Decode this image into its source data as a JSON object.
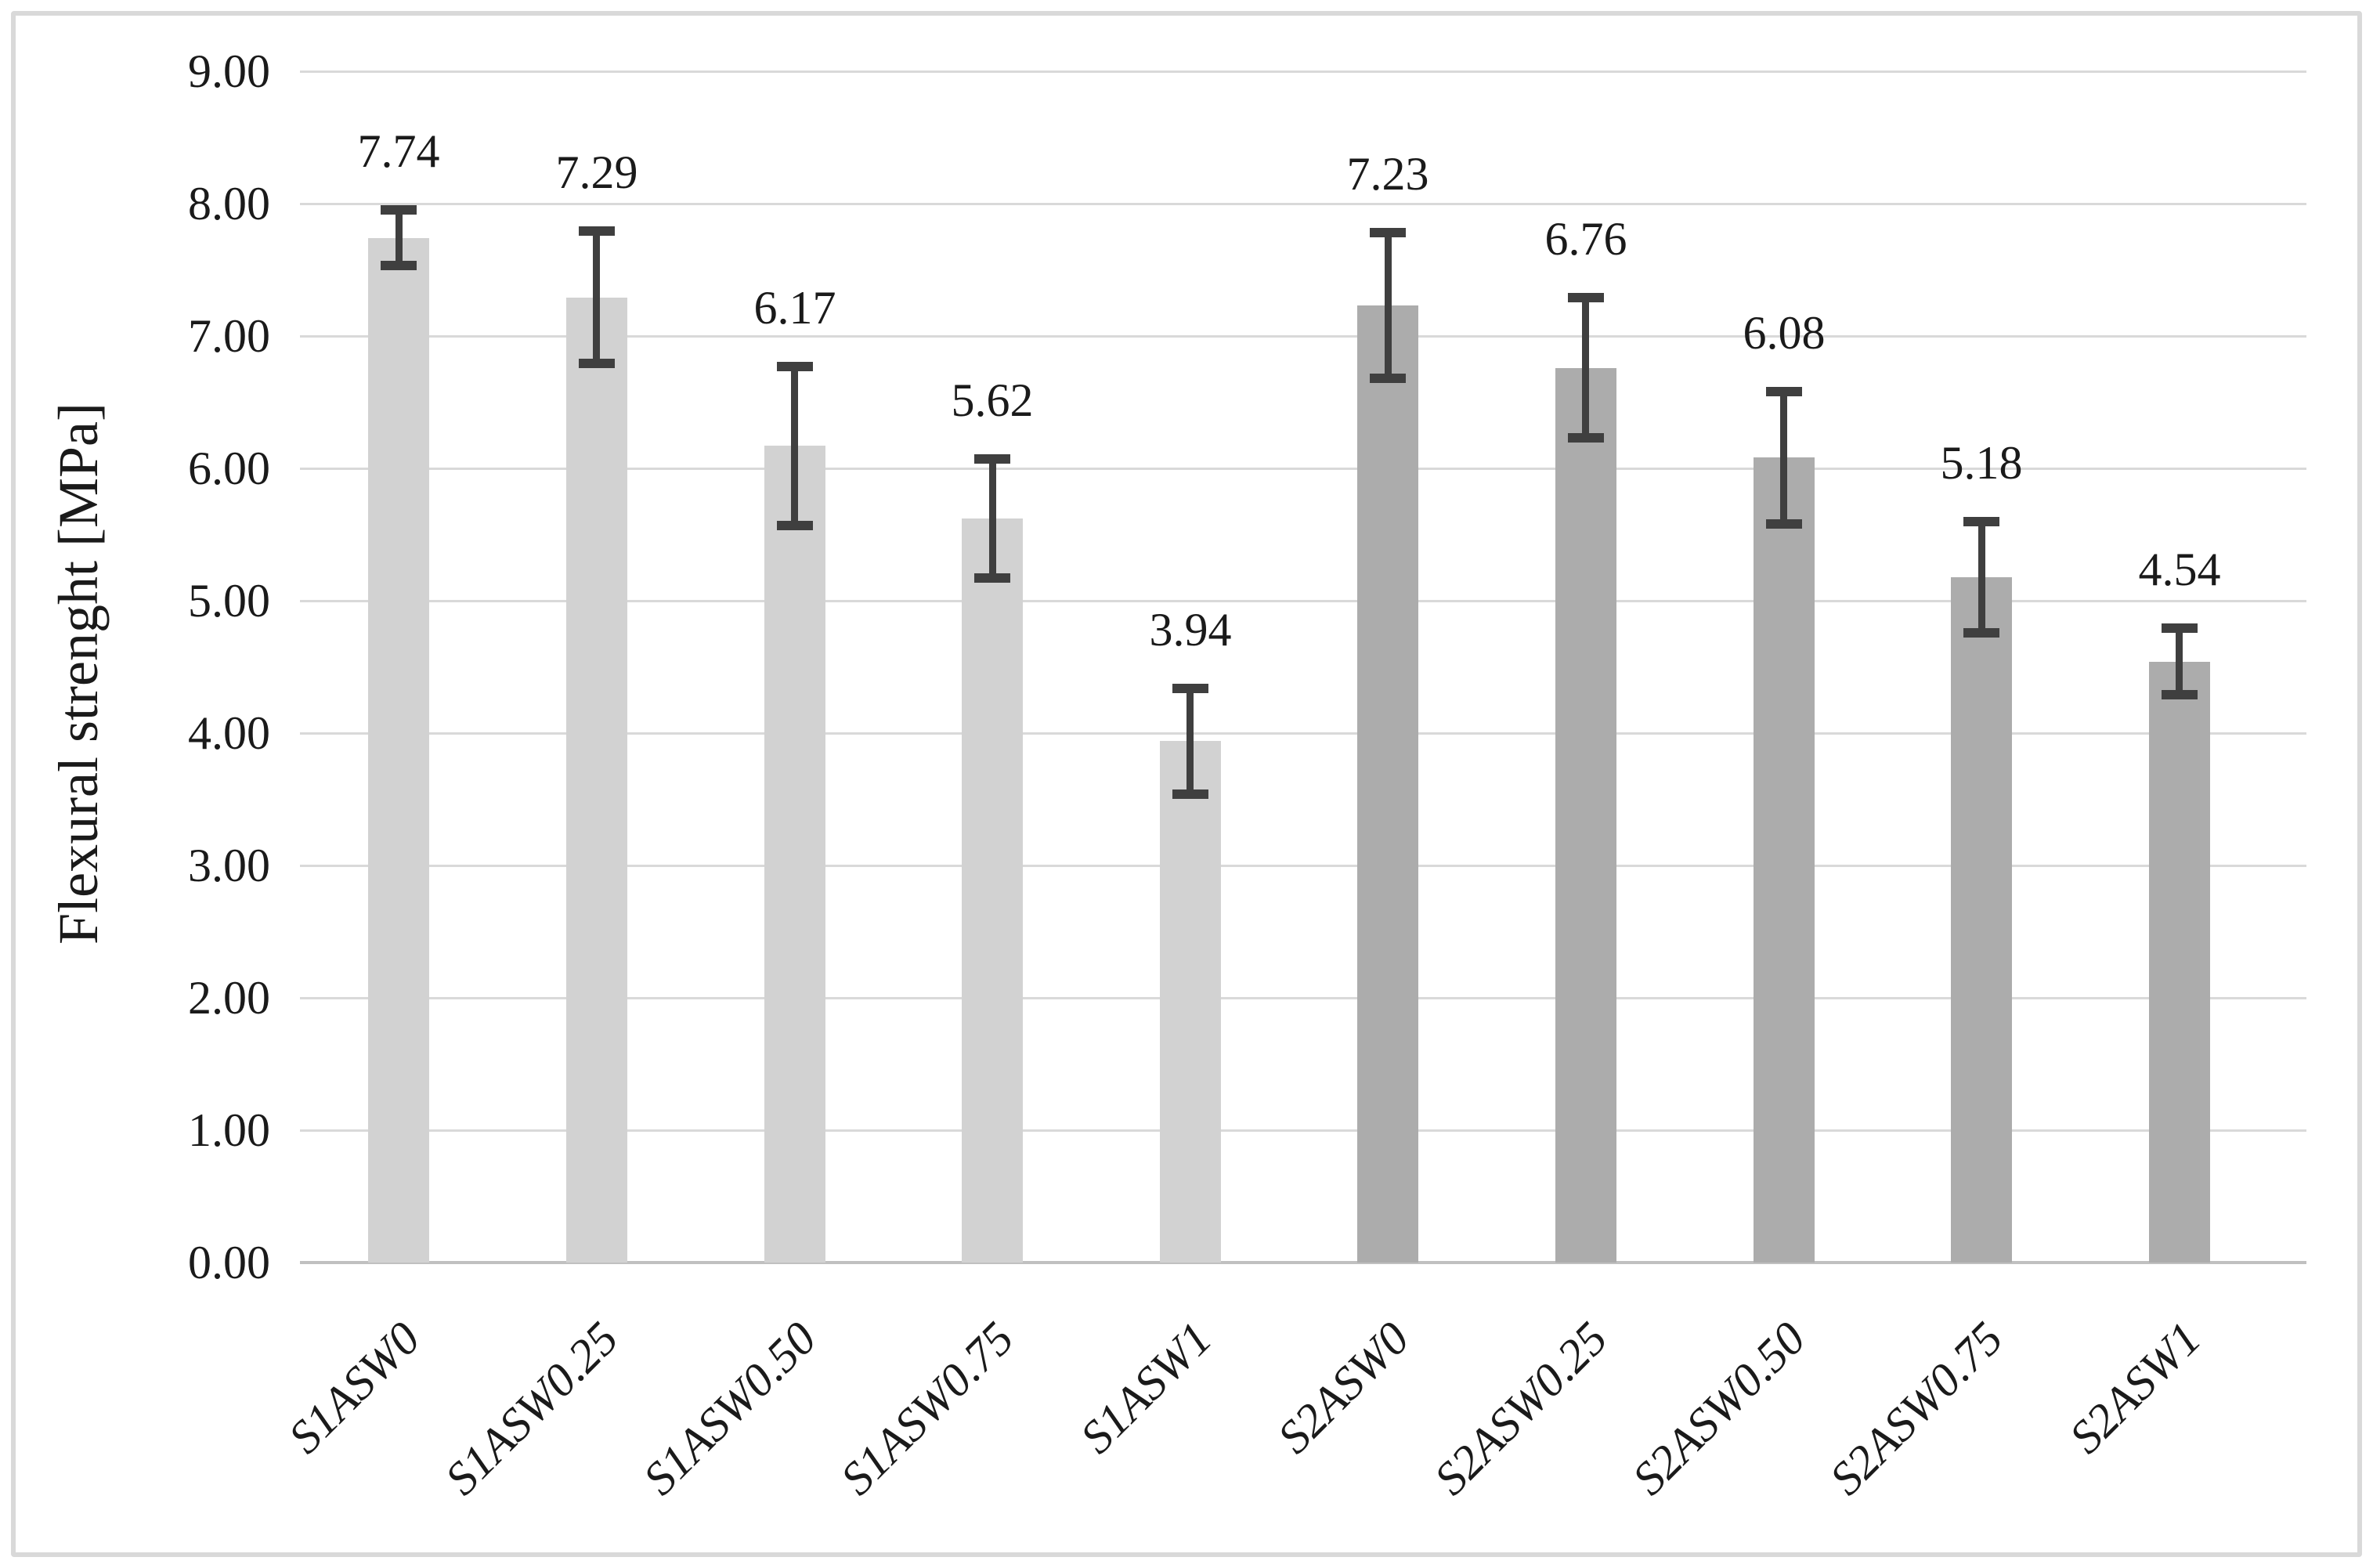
{
  "chart_data": {
    "type": "bar",
    "title": "",
    "ylabel": "Flexural strenght [MPa]",
    "xlabel": "",
    "ylim": [
      0,
      9
    ],
    "ytick_step": 1.0,
    "ytick_labels": [
      "0.00",
      "1.00",
      "2.00",
      "3.00",
      "4.00",
      "5.00",
      "6.00",
      "7.00",
      "8.00",
      "9.00"
    ],
    "categories": [
      "S1ASW0",
      "S1ASW0.25",
      "S1ASW0.50",
      "S1ASW0.75",
      "S1ASW1",
      "S2ASW0",
      "S2ASW0.25",
      "S2ASW0.50",
      "S2ASW0.75",
      "S2ASW1"
    ],
    "values": [
      7.74,
      7.29,
      6.17,
      5.62,
      3.94,
      7.23,
      6.76,
      6.08,
      5.18,
      4.54
    ],
    "data_labels": [
      "7.74",
      "7.29",
      "6.17",
      "5.62",
      "3.94",
      "7.23",
      "6.76",
      "6.08",
      "5.18",
      "4.54"
    ],
    "error_bars": [
      0.21,
      0.5,
      0.6,
      0.45,
      0.4,
      0.55,
      0.53,
      0.5,
      0.42,
      0.25
    ],
    "bar_colors": [
      "#d2d2d2",
      "#d2d2d2",
      "#d2d2d2",
      "#d2d2d2",
      "#d2d2d2",
      "#acacac",
      "#acacac",
      "#acacac",
      "#acacac",
      "#acacac"
    ],
    "grid": true,
    "legend": false,
    "category_axis_rotation_deg": 45,
    "styles": {
      "error_bar_color": "#3f3f3f",
      "gridline_color": "#d9d9d9",
      "axis_line_color": "#c0c0c0",
      "text_color": "#1a1a1a",
      "figure_border_color": "#d9d9d9",
      "background": "#ffffff"
    }
  }
}
